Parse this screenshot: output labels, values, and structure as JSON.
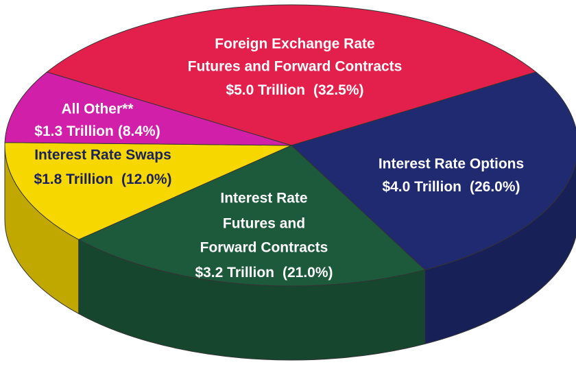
{
  "chart_data": {
    "type": "pie",
    "categories": [
      [
        "Foreign Exchange Rate",
        "Futures and Forward Contracts"
      ],
      [
        "Interest Rate Options"
      ],
      [
        "Interest Rate",
        "Futures and",
        "Forward Contracts"
      ],
      [
        "Interest Rate Swaps"
      ],
      [
        "All Other**"
      ]
    ],
    "values": [
      32.5,
      26.0,
      21.0,
      12.0,
      8.4
    ],
    "value_labels": [
      "(32.5%)",
      "(26.0%)",
      "(21.0%)",
      "(12.0%)",
      "(8.4%)"
    ],
    "amounts": [
      5.0,
      4.0,
      3.2,
      1.8,
      1.3
    ],
    "amount_labels": [
      "$5.0 Trillion",
      "$4.0 Trillion",
      "$3.2 Trillion",
      "$1.8 Trillion",
      "$1.3 Trillion"
    ],
    "colors": [
      "#e3204c",
      "#1f2a70",
      "#1d5a3c",
      "#f6d800",
      "#d21fa9"
    ]
  }
}
